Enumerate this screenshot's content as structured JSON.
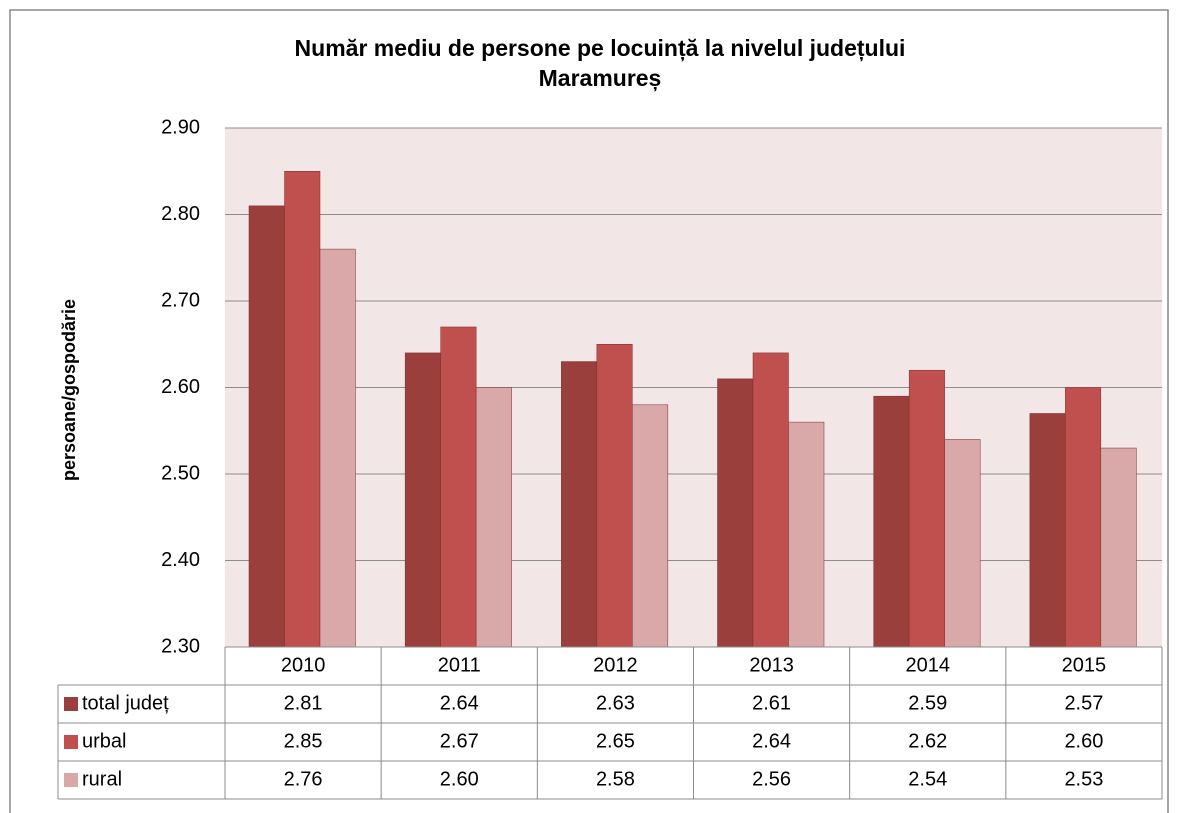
{
  "chart_data": {
    "type": "bar",
    "title": "Număr mediu de persone pe locuință la nivelul județului",
    "subtitle": "Maramureș",
    "y_label": "persoane/gospodărie",
    "categories": [
      "2010",
      "2011",
      "2012",
      "2013",
      "2014",
      "2015"
    ],
    "series": [
      {
        "name": "total județ",
        "color": "#9b3f3d",
        "values": [
          2.81,
          2.64,
          2.63,
          2.61,
          2.59,
          2.57
        ],
        "value_labels": [
          "2.81",
          "2.64",
          "2.63",
          "2.61",
          "2.59",
          "2.57"
        ]
      },
      {
        "name": "urbal",
        "color": "#c0504d",
        "values": [
          2.85,
          2.67,
          2.65,
          2.64,
          2.62,
          2.6
        ],
        "value_labels": [
          "2.85",
          "2.67",
          "2.65",
          "2.64",
          "2.62",
          "2.60"
        ]
      },
      {
        "name": "rural",
        "color": "#d9a9a9",
        "values": [
          2.76,
          2.6,
          2.58,
          2.56,
          2.54,
          2.53
        ],
        "value_labels": [
          "2.76",
          "2.60",
          "2.58",
          "2.56",
          "2.54",
          "2.53"
        ]
      }
    ],
    "ylim": [
      2.3,
      2.9
    ],
    "yticks": [
      {
        "value": 2.3,
        "label": "2.30"
      },
      {
        "value": 2.4,
        "label": "2.40"
      },
      {
        "value": 2.5,
        "label": "2.50"
      },
      {
        "value": 2.6,
        "label": "2.60"
      },
      {
        "value": 2.7,
        "label": "2.70"
      },
      {
        "value": 2.8,
        "label": "2.80"
      },
      {
        "value": 2.9,
        "label": "2.90"
      }
    ],
    "grid": true
  }
}
